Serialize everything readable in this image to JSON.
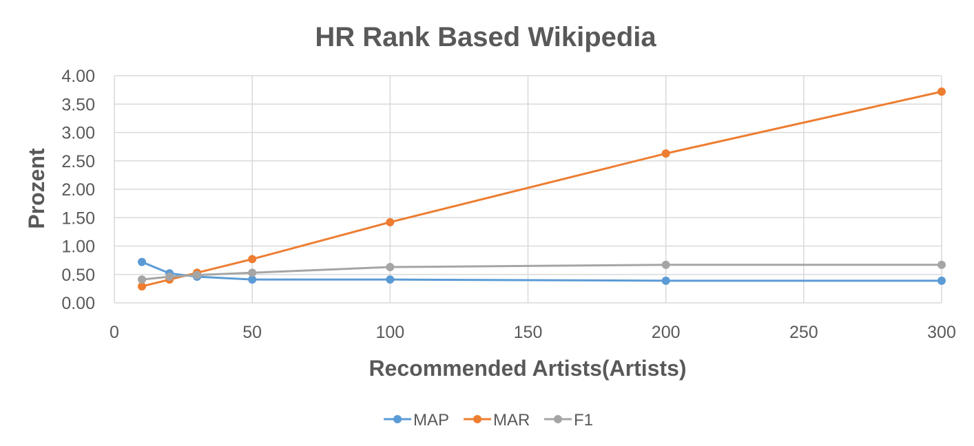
{
  "chart_data": {
    "type": "line",
    "title": "HR Rank Based Wikipedia",
    "xlabel": "Recommended Artists(Artists)",
    "ylabel": "Prozent",
    "xlim": [
      0,
      300
    ],
    "ylim": [
      0,
      4
    ],
    "x_ticks": [
      0,
      50,
      100,
      150,
      200,
      250,
      300
    ],
    "y_ticks": [
      "0.00",
      "0.50",
      "1.00",
      "1.50",
      "2.00",
      "2.50",
      "3.00",
      "3.50",
      "4.00"
    ],
    "grid": true,
    "legend_position": "bottom",
    "x": [
      10,
      20,
      30,
      50,
      100,
      200,
      300
    ],
    "series": [
      {
        "name": "MAP",
        "color": "#5b9bd5",
        "values": [
          0.72,
          0.52,
          0.46,
          0.41,
          0.41,
          0.39,
          0.39
        ]
      },
      {
        "name": "MAR",
        "color": "#ed7d31",
        "values": [
          0.29,
          0.41,
          0.53,
          0.77,
          1.42,
          2.63,
          3.72
        ]
      },
      {
        "name": "F1",
        "color": "#a5a5a5",
        "values": [
          0.41,
          0.46,
          0.49,
          0.53,
          0.63,
          0.67,
          0.67
        ]
      }
    ]
  }
}
